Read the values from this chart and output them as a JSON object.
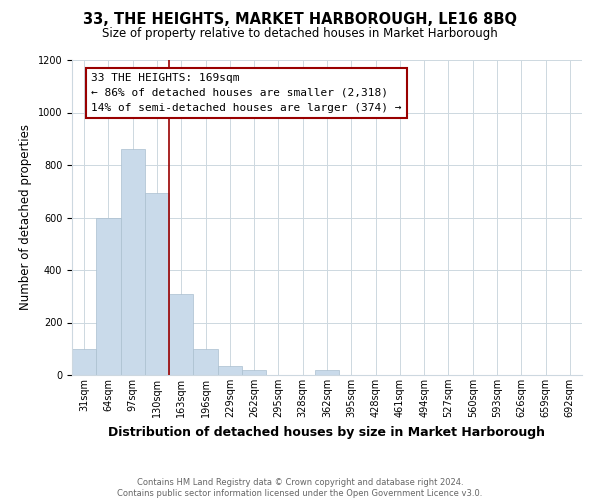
{
  "title": "33, THE HEIGHTS, MARKET HARBOROUGH, LE16 8BQ",
  "subtitle": "Size of property relative to detached houses in Market Harborough",
  "xlabel": "Distribution of detached houses by size in Market Harborough",
  "ylabel": "Number of detached properties",
  "bin_labels": [
    "31sqm",
    "64sqm",
    "97sqm",
    "130sqm",
    "163sqm",
    "196sqm",
    "229sqm",
    "262sqm",
    "295sqm",
    "328sqm",
    "362sqm",
    "395sqm",
    "428sqm",
    "461sqm",
    "494sqm",
    "527sqm",
    "560sqm",
    "593sqm",
    "626sqm",
    "659sqm",
    "692sqm"
  ],
  "bar_values": [
    100,
    600,
    860,
    695,
    310,
    100,
    35,
    18,
    0,
    0,
    18,
    0,
    0,
    0,
    0,
    0,
    0,
    0,
    0,
    0,
    0
  ],
  "bar_color": "#c9daea",
  "bar_edgecolor": "#aabfcf",
  "highlight_line_color": "#990000",
  "annotation_text": "33 THE HEIGHTS: 169sqm\n← 86% of detached houses are smaller (2,318)\n14% of semi-detached houses are larger (374) →",
  "annotation_box_edgecolor": "#990000",
  "ylim": [
    0,
    1200
  ],
  "yticks": [
    0,
    200,
    400,
    600,
    800,
    1000,
    1200
  ],
  "footer_text": "Contains HM Land Registry data © Crown copyright and database right 2024.\nContains public sector information licensed under the Open Government Licence v3.0.",
  "background_color": "#ffffff",
  "grid_color": "#cdd8e0",
  "title_fontsize": 10.5,
  "subtitle_fontsize": 8.5,
  "xlabel_fontsize": 9,
  "ylabel_fontsize": 8.5,
  "tick_fontsize": 7,
  "annotation_fontsize": 8,
  "footer_fontsize": 6
}
